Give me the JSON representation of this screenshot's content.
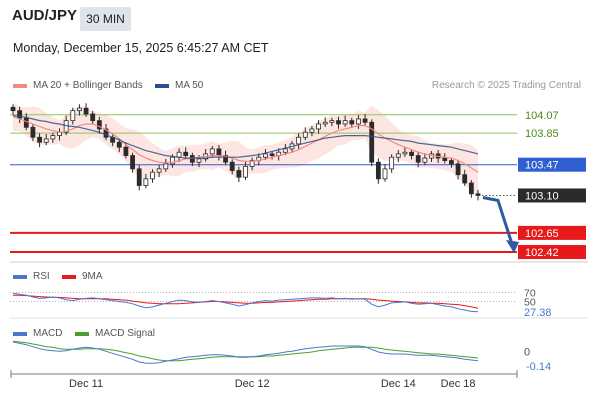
{
  "header": {
    "pair": "AUD/JPY",
    "timeframe": "30 MIN",
    "datetime": "Monday, December 15, 2025 6:45:27 AM CET",
    "credit": "Research © 2025 Trading Central"
  },
  "legend": {
    "ma20": "MA 20 + Bollinger Bands",
    "ma50": "MA 50",
    "rsi": "RSI",
    "rsi_ma": "9MA",
    "macd": "MACD",
    "macd_signal": "MACD Signal"
  },
  "colors": {
    "ma20": "#f08c82",
    "ma50": "#2c4f8c",
    "bollinger_fill": "#fde2df",
    "candle": "#2b2b2b",
    "resistance_green": "#8fc35a",
    "pivot_blue": "#2f5fd0",
    "support_red": "#e8191b",
    "current_price_bg": "#2b2b2b",
    "rsi": "#4a78d0",
    "rsi_ma": "#e8191b",
    "macd": "#4a78d0",
    "macd_signal": "#4a9e2f"
  },
  "chart_data": [
    {
      "type": "candlestick",
      "title": "AUD/JPY 30 MIN",
      "x_tick_labels": [
        "Dec 11",
        "Dec 12",
        "Dec 14",
        "Dec 18"
      ],
      "ylim": [
        102.3,
        104.2
      ],
      "price_levels": [
        {
          "label": "104.07",
          "value": 104.07,
          "kind": "resistance"
        },
        {
          "label": "103.85",
          "value": 103.85,
          "kind": "resistance"
        },
        {
          "label": "103.47",
          "value": 103.47,
          "kind": "pivot"
        },
        {
          "label": "103.10",
          "value": 103.1,
          "kind": "current"
        },
        {
          "label": "102.65",
          "value": 102.65,
          "kind": "support"
        },
        {
          "label": "102.42",
          "value": 102.42,
          "kind": "support"
        }
      ],
      "close": [
        104.12,
        104.03,
        103.92,
        103.8,
        103.74,
        103.78,
        103.82,
        103.86,
        104.0,
        104.12,
        104.15,
        104.08,
        104.0,
        103.9,
        103.8,
        103.74,
        103.68,
        103.58,
        103.42,
        103.22,
        103.3,
        103.38,
        103.42,
        103.48,
        103.56,
        103.62,
        103.58,
        103.5,
        103.54,
        103.6,
        103.66,
        103.58,
        103.5,
        103.4,
        103.32,
        103.45,
        103.52,
        103.56,
        103.6,
        103.58,
        103.62,
        103.66,
        103.72,
        103.8,
        103.86,
        103.9,
        103.96,
        103.98,
        104.0,
        103.96,
        104.0,
        103.96,
        104.02,
        103.98,
        103.5,
        103.3,
        103.42,
        103.56,
        103.6,
        103.62,
        103.58,
        103.5,
        103.55,
        103.6,
        103.55,
        103.52,
        103.48,
        103.35,
        103.25,
        103.12,
        103.1
      ],
      "ma20": [
        104.05,
        104.02,
        103.99,
        103.96,
        103.93,
        103.9,
        103.88,
        103.86,
        103.87,
        103.9,
        103.94,
        103.96,
        103.96,
        103.93,
        103.89,
        103.84,
        103.78,
        103.71,
        103.65,
        103.59,
        103.55,
        103.52,
        103.5,
        103.49,
        103.5,
        103.52,
        103.54,
        103.55,
        103.56,
        103.57,
        103.58,
        103.58,
        103.57,
        103.55,
        103.52,
        103.51,
        103.51,
        103.52,
        103.54,
        103.56,
        103.58,
        103.6,
        103.62,
        103.65,
        103.69,
        103.73,
        103.77,
        103.81,
        103.85,
        103.88,
        103.9,
        103.92,
        103.94,
        103.94,
        103.9,
        103.84,
        103.79,
        103.75,
        103.71,
        103.68,
        103.65,
        103.62,
        103.6,
        103.58,
        103.57,
        103.56,
        103.55,
        103.52,
        103.48,
        103.43,
        103.38
      ],
      "ma50": [
        104.06,
        104.05,
        104.04,
        104.02,
        104.0,
        103.99,
        103.97,
        103.96,
        103.94,
        103.93,
        103.92,
        103.9,
        103.88,
        103.86,
        103.83,
        103.8,
        103.77,
        103.73,
        103.7,
        103.67,
        103.64,
        103.62,
        103.6,
        103.58,
        103.57,
        103.56,
        103.55,
        103.55,
        103.55,
        103.55,
        103.56,
        103.56,
        103.56,
        103.56,
        103.56,
        103.57,
        103.58,
        103.59,
        103.61,
        103.63,
        103.65,
        103.67,
        103.69,
        103.71,
        103.73,
        103.75,
        103.77,
        103.79,
        103.8,
        103.81,
        103.82,
        103.82,
        103.82,
        103.82,
        103.81,
        103.8,
        103.79,
        103.78,
        103.77,
        103.76,
        103.75,
        103.73,
        103.72,
        103.71,
        103.7,
        103.69,
        103.68,
        103.66,
        103.64,
        103.62,
        103.6
      ]
    },
    {
      "type": "line",
      "title": "RSI",
      "ylim": [
        20,
        80
      ],
      "level_labels": [
        "70",
        "50"
      ],
      "last_value_label": "27.38",
      "series": [
        {
          "name": "RSI",
          "values": [
            68,
            66,
            64,
            60,
            57,
            58,
            60,
            58,
            54,
            52,
            55,
            57,
            58,
            56,
            54,
            52,
            50,
            48,
            45,
            40,
            36,
            38,
            42,
            46,
            50,
            53,
            52,
            49,
            48,
            50,
            52,
            50,
            47,
            44,
            40,
            43,
            47,
            50,
            52,
            51,
            53,
            54,
            55,
            56,
            57,
            58,
            58,
            57,
            58,
            56,
            57,
            55,
            56,
            55,
            44,
            38,
            42,
            47,
            48,
            49,
            46,
            44,
            45,
            46,
            43,
            40,
            38,
            34,
            31,
            28,
            27.38
          ]
        },
        {
          "name": "9MA",
          "values": [
            64,
            64,
            63,
            62,
            61,
            60,
            59,
            59,
            58,
            57,
            56,
            56,
            56,
            56,
            56,
            55,
            54,
            53,
            51,
            49,
            47,
            46,
            45,
            45,
            45,
            45,
            46,
            47,
            48,
            49,
            50,
            50,
            49,
            48,
            47,
            46,
            46,
            47,
            48,
            48,
            49,
            50,
            51,
            52,
            53,
            54,
            55,
            55,
            56,
            56,
            56,
            56,
            56,
            56,
            55,
            53,
            52,
            51,
            50,
            49,
            48,
            47,
            47,
            46,
            46,
            45,
            44,
            43,
            41,
            38,
            35
          ]
        }
      ]
    },
    {
      "type": "line",
      "title": "MACD",
      "ylim": [
        -0.25,
        0.2
      ],
      "level_labels": [
        "0"
      ],
      "last_value_label": "-0.14",
      "series": [
        {
          "name": "MACD",
          "values": [
            0.14,
            0.12,
            0.1,
            0.07,
            0.04,
            0.02,
            0.01,
            0.0,
            0.01,
            0.03,
            0.05,
            0.06,
            0.05,
            0.03,
            0.0,
            -0.03,
            -0.06,
            -0.09,
            -0.12,
            -0.16,
            -0.18,
            -0.18,
            -0.17,
            -0.15,
            -0.13,
            -0.11,
            -0.09,
            -0.08,
            -0.07,
            -0.06,
            -0.05,
            -0.05,
            -0.06,
            -0.07,
            -0.09,
            -0.09,
            -0.08,
            -0.07,
            -0.05,
            -0.04,
            -0.03,
            -0.01,
            0.0,
            0.02,
            0.04,
            0.05,
            0.06,
            0.07,
            0.08,
            0.08,
            0.08,
            0.08,
            0.08,
            0.07,
            0.03,
            -0.01,
            -0.03,
            -0.04,
            -0.04,
            -0.04,
            -0.05,
            -0.06,
            -0.06,
            -0.06,
            -0.07,
            -0.08,
            -0.09,
            -0.1,
            -0.12,
            -0.13,
            -0.14
          ]
        },
        {
          "name": "MACD Signal",
          "values": [
            0.15,
            0.14,
            0.13,
            0.11,
            0.09,
            0.07,
            0.06,
            0.04,
            0.03,
            0.03,
            0.03,
            0.04,
            0.04,
            0.04,
            0.03,
            0.02,
            0.0,
            -0.02,
            -0.04,
            -0.07,
            -0.09,
            -0.11,
            -0.13,
            -0.14,
            -0.14,
            -0.14,
            -0.13,
            -0.12,
            -0.11,
            -0.1,
            -0.09,
            -0.08,
            -0.08,
            -0.08,
            -0.08,
            -0.08,
            -0.08,
            -0.08,
            -0.07,
            -0.07,
            -0.06,
            -0.05,
            -0.04,
            -0.03,
            -0.02,
            -0.01,
            0.01,
            0.02,
            0.03,
            0.04,
            0.05,
            0.06,
            0.06,
            0.06,
            0.06,
            0.05,
            0.03,
            0.02,
            0.01,
            0.0,
            -0.01,
            -0.02,
            -0.03,
            -0.04,
            -0.04,
            -0.05,
            -0.06,
            -0.07,
            -0.08,
            -0.09,
            -0.1
          ]
        }
      ]
    }
  ]
}
